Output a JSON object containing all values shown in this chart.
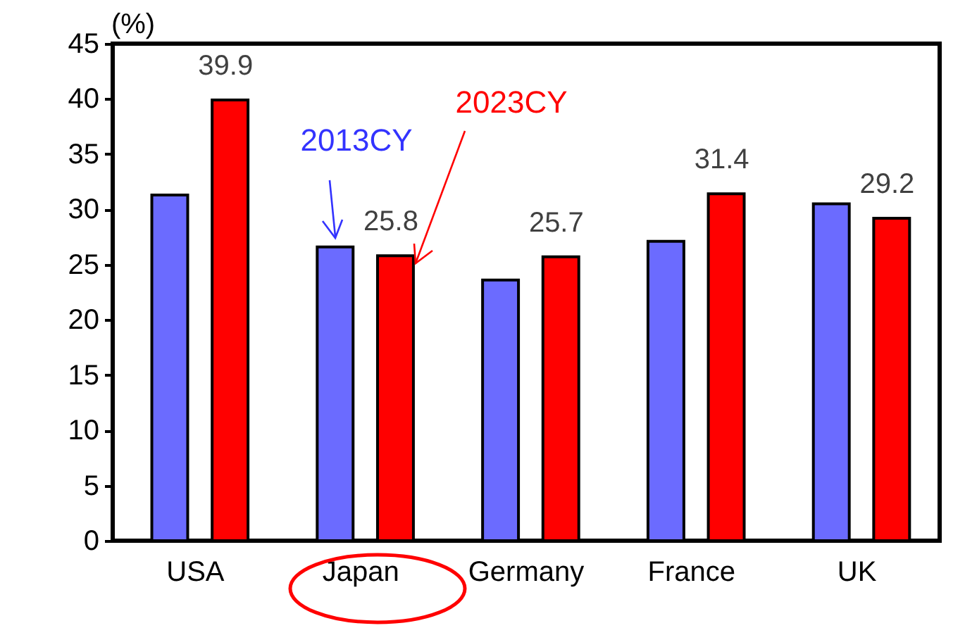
{
  "chart_data": {
    "type": "bar",
    "ylabel": "(%)",
    "categories": [
      "USA",
      "Japan",
      "Germany",
      "France",
      "UK"
    ],
    "series": [
      {
        "name": "2013CY",
        "color": "#6b6bff",
        "values": [
          31.3,
          26.6,
          23.6,
          27.1,
          30.5
        ]
      },
      {
        "name": "2023CY",
        "color": "#ff0000",
        "values": [
          39.9,
          25.8,
          25.7,
          31.4,
          29.2
        ],
        "value_labels": [
          "39.9",
          "25.8",
          "25.7",
          "31.4",
          "29.2"
        ]
      }
    ],
    "ylim": [
      0,
      45
    ],
    "yticks": [
      0,
      5,
      10,
      15,
      20,
      25,
      30,
      35,
      40,
      45
    ],
    "grid": false,
    "legend": false
  }
}
